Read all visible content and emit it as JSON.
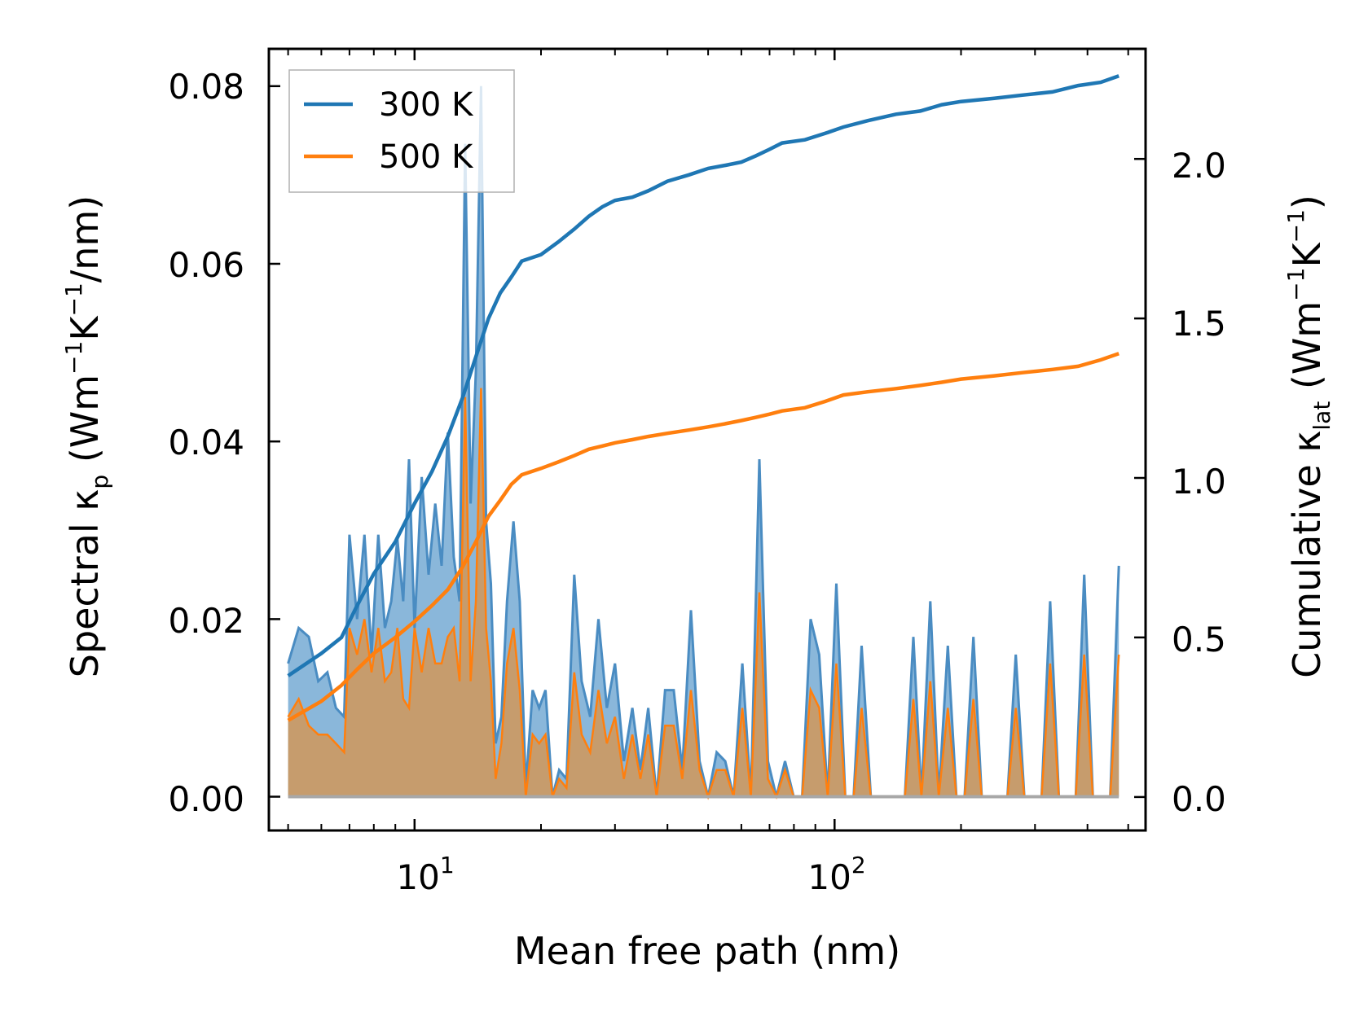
{
  "chart_data": {
    "type": "line",
    "xlabel": "Mean free path (nm)",
    "xscale": "log",
    "xlim": [
      4.5,
      550
    ],
    "x_ticks": [
      {
        "base": "10",
        "exp": "1",
        "value": 10
      },
      {
        "base": "10",
        "exp": "2",
        "value": 100
      }
    ],
    "ylabel_left": {
      "main": "Spectral κ",
      "sub": "p",
      "open": " (Wm",
      "sup1": "−1",
      "mid": "K",
      "sup2": "−1",
      "tail": "/nm)"
    },
    "ylabel_right": {
      "main": "Cumulative κ",
      "sub": "lat",
      "open": " (Wm",
      "sup1": "−1",
      "mid": "K",
      "sup2": "−1",
      "tail": ")"
    },
    "ylim_left": [
      -0.0038,
      0.0842
    ],
    "ylim_right": [
      -0.105,
      2.345
    ],
    "yticks_left": [
      "0.00",
      "0.02",
      "0.04",
      "0.06",
      "0.08"
    ],
    "yticks_right": [
      "0.0",
      "0.5",
      "1.0",
      "1.5",
      "2.0"
    ],
    "legend": {
      "position": "top-left",
      "entries": [
        "300 K",
        "500 K"
      ]
    },
    "colors": {
      "300 K": "#1f77b4",
      "500 K": "#ff7f0e",
      "fill_300": "#8ab7da",
      "fill_500": "#c69c6d"
    },
    "spectral": {
      "x": [
        5.0,
        5.3,
        5.6,
        5.9,
        6.2,
        6.5,
        6.8,
        7.0,
        7.3,
        7.6,
        7.9,
        8.2,
        8.5,
        8.8,
        9.1,
        9.4,
        9.7,
        10.0,
        10.4,
        10.8,
        11.2,
        11.6,
        12.0,
        12.4,
        12.8,
        13.2,
        13.6,
        14.0,
        14.4,
        14.8,
        15.2,
        15.6,
        16.1,
        16.6,
        17.2,
        17.8,
        18.4,
        19.1,
        19.8,
        20.5,
        21.3,
        22.1,
        23.0,
        24.0,
        25.0,
        26.2,
        27.4,
        28.7,
        30.0,
        31.5,
        33.0,
        34.5,
        36.0,
        37.7,
        39.5,
        41.4,
        43.4,
        45.5,
        47.7,
        50.0,
        52.4,
        54.9,
        57.5,
        60.3,
        63.2,
        66.2,
        69.4,
        72.7,
        76.2,
        79.9,
        83.7,
        87.7,
        91.9,
        96.3,
        101,
        106,
        111,
        116,
        122,
        128,
        134,
        140,
        147,
        154,
        161,
        169,
        177,
        186,
        195,
        204,
        214,
        224,
        235,
        246,
        258,
        270,
        283,
        297,
        311,
        326,
        342,
        358,
        375,
        393,
        412,
        432,
        453,
        475
      ],
      "k300": [
        0.015,
        0.019,
        0.018,
        0.013,
        0.014,
        0.01,
        0.009,
        0.0295,
        0.02,
        0.0295,
        0.016,
        0.0295,
        0.019,
        0.022,
        0.029,
        0.022,
        0.038,
        0.019,
        0.036,
        0.025,
        0.033,
        0.026,
        0.041,
        0.027,
        0.022,
        0.0735,
        0.033,
        0.048,
        0.08,
        0.031,
        0.024,
        0.006,
        0.009,
        0.022,
        0.031,
        0.022,
        0.001,
        0.012,
        0.01,
        0.012,
        0.0,
        0.003,
        0.002,
        0.025,
        0.013,
        0.009,
        0.02,
        0.01,
        0.015,
        0.004,
        0.01,
        0.003,
        0.01,
        0.0,
        0.012,
        0.012,
        0.003,
        0.021,
        0.004,
        0.0,
        0.005,
        0.004,
        0.0,
        0.015,
        0.0,
        0.038,
        0.004,
        0.0,
        0.004,
        0.0,
        0.0,
        0.02,
        0.016,
        0.0,
        0.024,
        0.0,
        0.0,
        0.017,
        0.0,
        0.0,
        0.0,
        0.0,
        0.0,
        0.018,
        0.0,
        0.022,
        0.0,
        0.017,
        0.0,
        0.0,
        0.018,
        0.0,
        0.0,
        0.0,
        0.0,
        0.016,
        0.0,
        0.0,
        0.0,
        0.022,
        0.0,
        0.0,
        0.0,
        0.025,
        0.0,
        0.0,
        0.0,
        0.026
      ],
      "k500": [
        0.009,
        0.011,
        0.008,
        0.007,
        0.007,
        0.006,
        0.005,
        0.019,
        0.016,
        0.02,
        0.014,
        0.019,
        0.013,
        0.014,
        0.019,
        0.011,
        0.01,
        0.019,
        0.014,
        0.019,
        0.015,
        0.015,
        0.018,
        0.019,
        0.013,
        0.045,
        0.013,
        0.022,
        0.046,
        0.019,
        0.013,
        0.002,
        0.006,
        0.015,
        0.019,
        0.012,
        0.0,
        0.007,
        0.006,
        0.007,
        0.0,
        0.002,
        0.001,
        0.014,
        0.007,
        0.005,
        0.012,
        0.006,
        0.009,
        0.002,
        0.007,
        0.002,
        0.007,
        0.0,
        0.008,
        0.008,
        0.002,
        0.012,
        0.003,
        0.0,
        0.003,
        0.003,
        0.0,
        0.01,
        0.0,
        0.023,
        0.002,
        0.0,
        0.003,
        0.0,
        0.0,
        0.012,
        0.01,
        0.0,
        0.015,
        0.0,
        0.0,
        0.01,
        0.0,
        0.0,
        0.0,
        0.0,
        0.0,
        0.011,
        0.0,
        0.013,
        0.0,
        0.01,
        0.0,
        0.0,
        0.011,
        0.0,
        0.0,
        0.0,
        0.0,
        0.01,
        0.0,
        0.0,
        0.0,
        0.015,
        0.0,
        0.0,
        0.0,
        0.016,
        0.0,
        0.0,
        0.0,
        0.016
      ]
    },
    "cumulative": {
      "x": [
        5.0,
        6.0,
        6.7,
        7.3,
        8.0,
        9.0,
        10.0,
        11.0,
        12.0,
        13.0,
        14.0,
        15.0,
        16.0,
        17.0,
        18.0,
        20.0,
        22.0,
        24.0,
        26.0,
        28.0,
        30.0,
        33.0,
        36.0,
        40.0,
        45.0,
        50.0,
        55.0,
        60.0,
        65.0,
        70.0,
        75.0,
        85.0,
        95.0,
        105.0,
        120.0,
        140.0,
        160.0,
        180.0,
        200.0,
        240.0,
        280.0,
        330.0,
        380.0,
        430.0,
        475.0
      ],
      "c300": [
        0.38,
        0.45,
        0.5,
        0.6,
        0.7,
        0.8,
        0.92,
        1.02,
        1.13,
        1.25,
        1.38,
        1.5,
        1.58,
        1.63,
        1.68,
        1.7,
        1.74,
        1.78,
        1.82,
        1.85,
        1.87,
        1.88,
        1.9,
        1.93,
        1.95,
        1.97,
        1.98,
        1.99,
        2.01,
        2.03,
        2.05,
        2.06,
        2.08,
        2.1,
        2.12,
        2.14,
        2.15,
        2.17,
        2.18,
        2.19,
        2.2,
        2.21,
        2.23,
        2.24,
        2.26
      ],
      "c500": [
        0.24,
        0.3,
        0.35,
        0.4,
        0.45,
        0.5,
        0.55,
        0.6,
        0.65,
        0.72,
        0.8,
        0.88,
        0.93,
        0.98,
        1.01,
        1.03,
        1.05,
        1.07,
        1.09,
        1.1,
        1.11,
        1.12,
        1.13,
        1.14,
        1.15,
        1.16,
        1.17,
        1.18,
        1.19,
        1.2,
        1.21,
        1.22,
        1.24,
        1.26,
        1.27,
        1.28,
        1.29,
        1.3,
        1.31,
        1.32,
        1.33,
        1.34,
        1.35,
        1.37,
        1.39
      ]
    }
  }
}
